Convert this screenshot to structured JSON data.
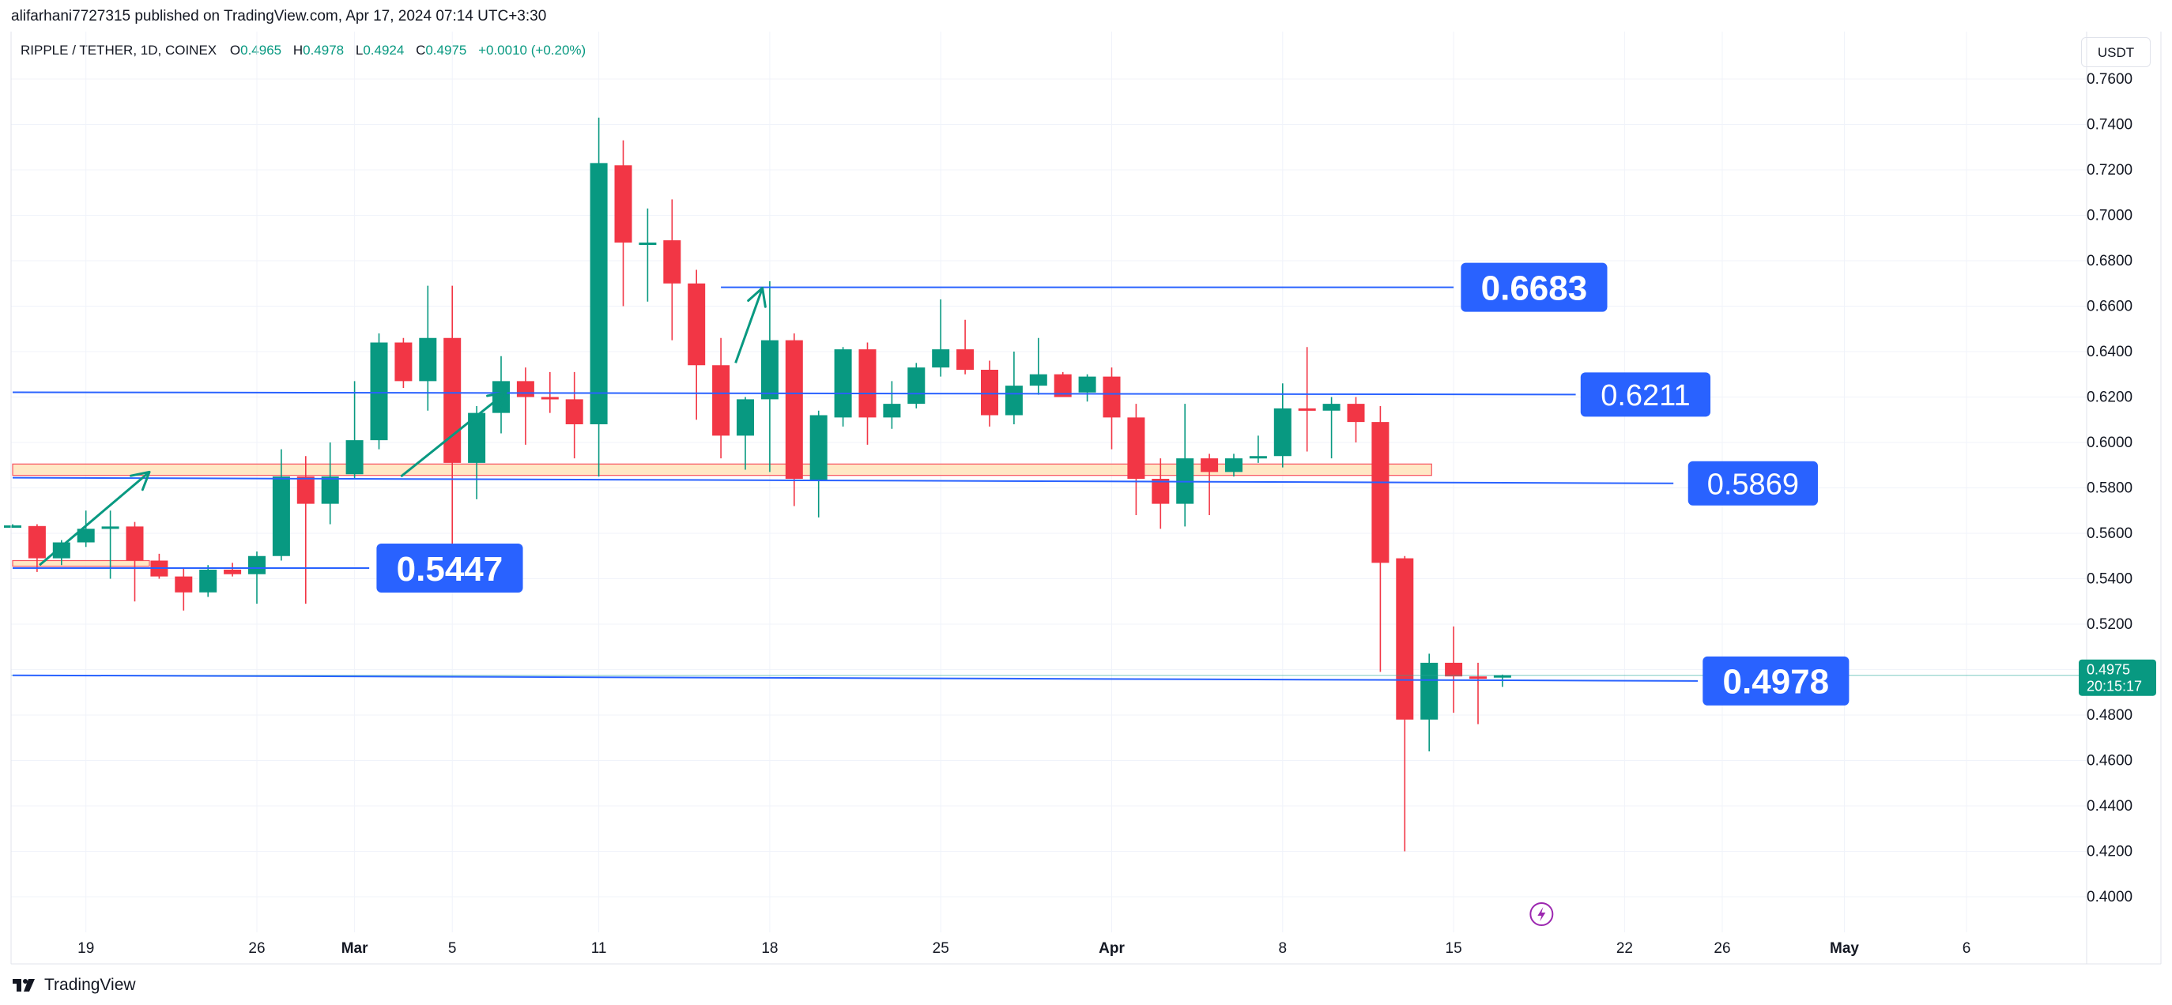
{
  "header": {
    "publisher_line": "alifarhani7727315 published on TradingView.com, Apr 17, 2024 07:14 UTC+3:30"
  },
  "legend": {
    "symbol": "RIPPLE / TETHER, 1D, COINEX",
    "open_label": "O",
    "open": "0.4965",
    "high_label": "H",
    "high": "0.4978",
    "low_label": "L",
    "low": "0.4924",
    "close_label": "C",
    "close": "0.4975",
    "change": "+0.0010 (+0.20%)"
  },
  "currency_button": "USDT",
  "footer": {
    "brand": "TradingView"
  },
  "colors": {
    "up": "#089981",
    "down": "#f23645",
    "line": "#2962ff",
    "zone_fill": "#ffe0b2",
    "zone_border": "#f7525f",
    "grid": "#f0f3fa",
    "text": "#131722",
    "price_line": "#26a69a"
  },
  "chart_data": {
    "type": "candlestick",
    "ylim": [
      0.38,
      0.77
    ],
    "y_ticks": [
      "0.7600",
      "0.7400",
      "0.7200",
      "0.7000",
      "0.6800",
      "0.6600",
      "0.6400",
      "0.6200",
      "0.6000",
      "0.5800",
      "0.5600",
      "0.5400",
      "0.5200",
      "0.5000",
      "0.4800",
      "0.4600",
      "0.4400",
      "0.4200",
      "0.4000"
    ],
    "x_ticks": [
      {
        "label": "19",
        "day": 3
      },
      {
        "label": "26",
        "day": 10
      },
      {
        "label": "Mar",
        "day": 14,
        "bold": true
      },
      {
        "label": "5",
        "day": 18
      },
      {
        "label": "11",
        "day": 24
      },
      {
        "label": "18",
        "day": 31
      },
      {
        "label": "25",
        "day": 38
      },
      {
        "label": "Apr",
        "day": 45,
        "bold": true
      },
      {
        "label": "8",
        "day": 52
      },
      {
        "label": "15",
        "day": 59
      },
      {
        "label": "22",
        "day": 66
      },
      {
        "label": "26",
        "day": 70
      },
      {
        "label": "May",
        "day": 75,
        "bold": true
      },
      {
        "label": "6",
        "day": 80
      }
    ],
    "candles": [
      {
        "date": "Feb 16",
        "o": 0.5632,
        "h": 0.564,
        "l": 0.5625,
        "c": 0.5635
      },
      {
        "date": "Feb 17",
        "o": 0.5632,
        "h": 0.564,
        "l": 0.543,
        "c": 0.549
      },
      {
        "date": "Feb 18",
        "o": 0.549,
        "h": 0.557,
        "l": 0.546,
        "c": 0.556
      },
      {
        "date": "Feb 19",
        "o": 0.556,
        "h": 0.57,
        "l": 0.554,
        "c": 0.562
      },
      {
        "date": "Feb 20",
        "o": 0.563,
        "h": 0.57,
        "l": 0.54,
        "c": 0.563
      },
      {
        "date": "Feb 21",
        "o": 0.563,
        "h": 0.565,
        "l": 0.53,
        "c": 0.548
      },
      {
        "date": "Feb 22",
        "o": 0.548,
        "h": 0.551,
        "l": 0.54,
        "c": 0.541
      },
      {
        "date": "Feb 23",
        "o": 0.541,
        "h": 0.545,
        "l": 0.526,
        "c": 0.534
      },
      {
        "date": "Feb 24",
        "o": 0.534,
        "h": 0.546,
        "l": 0.532,
        "c": 0.544
      },
      {
        "date": "Feb 25",
        "o": 0.544,
        "h": 0.547,
        "l": 0.541,
        "c": 0.542
      },
      {
        "date": "Feb 26",
        "o": 0.542,
        "h": 0.552,
        "l": 0.529,
        "c": 0.55
      },
      {
        "date": "Feb 27",
        "o": 0.55,
        "h": 0.597,
        "l": 0.548,
        "c": 0.585
      },
      {
        "date": "Feb 28",
        "o": 0.585,
        "h": 0.594,
        "l": 0.529,
        "c": 0.573
      },
      {
        "date": "Feb 29",
        "o": 0.573,
        "h": 0.6,
        "l": 0.564,
        "c": 0.585
      },
      {
        "date": "Mar 1",
        "o": 0.586,
        "h": 0.627,
        "l": 0.584,
        "c": 0.601
      },
      {
        "date": "Mar 2",
        "o": 0.601,
        "h": 0.648,
        "l": 0.597,
        "c": 0.644
      },
      {
        "date": "Mar 3",
        "o": 0.644,
        "h": 0.646,
        "l": 0.624,
        "c": 0.627
      },
      {
        "date": "Mar 4",
        "o": 0.627,
        "h": 0.669,
        "l": 0.614,
        "c": 0.646
      },
      {
        "date": "Mar 5",
        "o": 0.646,
        "h": 0.669,
        "l": 0.54,
        "c": 0.591
      },
      {
        "date": "Mar 6",
        "o": 0.591,
        "h": 0.616,
        "l": 0.575,
        "c": 0.613
      },
      {
        "date": "Mar 7",
        "o": 0.613,
        "h": 0.638,
        "l": 0.604,
        "c": 0.627
      },
      {
        "date": "Mar 8",
        "o": 0.627,
        "h": 0.633,
        "l": 0.599,
        "c": 0.62
      },
      {
        "date": "Mar 9",
        "o": 0.62,
        "h": 0.631,
        "l": 0.613,
        "c": 0.619
      },
      {
        "date": "Mar 10",
        "o": 0.619,
        "h": 0.631,
        "l": 0.593,
        "c": 0.608
      },
      {
        "date": "Mar 11",
        "o": 0.608,
        "h": 0.743,
        "l": 0.585,
        "c": 0.723
      },
      {
        "date": "Mar 12",
        "o": 0.722,
        "h": 0.733,
        "l": 0.66,
        "c": 0.688
      },
      {
        "date": "Mar 13",
        "o": 0.688,
        "h": 0.703,
        "l": 0.662,
        "c": 0.688
      },
      {
        "date": "Mar 14",
        "o": 0.689,
        "h": 0.707,
        "l": 0.645,
        "c": 0.67
      },
      {
        "date": "Mar 15",
        "o": 0.67,
        "h": 0.676,
        "l": 0.61,
        "c": 0.634
      },
      {
        "date": "Mar 16",
        "o": 0.634,
        "h": 0.646,
        "l": 0.593,
        "c": 0.603
      },
      {
        "date": "Mar 17",
        "o": 0.603,
        "h": 0.62,
        "l": 0.588,
        "c": 0.619
      },
      {
        "date": "Mar 18",
        "o": 0.619,
        "h": 0.671,
        "l": 0.587,
        "c": 0.645
      },
      {
        "date": "Mar 19",
        "o": 0.645,
        "h": 0.648,
        "l": 0.572,
        "c": 0.584
      },
      {
        "date": "Mar 20",
        "o": 0.583,
        "h": 0.614,
        "l": 0.567,
        "c": 0.612
      },
      {
        "date": "Mar 21",
        "o": 0.611,
        "h": 0.642,
        "l": 0.607,
        "c": 0.641
      },
      {
        "date": "Mar 22",
        "o": 0.641,
        "h": 0.644,
        "l": 0.599,
        "c": 0.611
      },
      {
        "date": "Mar 23",
        "o": 0.611,
        "h": 0.627,
        "l": 0.606,
        "c": 0.617
      },
      {
        "date": "Mar 24",
        "o": 0.617,
        "h": 0.635,
        "l": 0.615,
        "c": 0.633
      },
      {
        "date": "Mar 25",
        "o": 0.633,
        "h": 0.663,
        "l": 0.629,
        "c": 0.641
      },
      {
        "date": "Mar 26",
        "o": 0.641,
        "h": 0.654,
        "l": 0.63,
        "c": 0.632
      },
      {
        "date": "Mar 27",
        "o": 0.632,
        "h": 0.636,
        "l": 0.607,
        "c": 0.612
      },
      {
        "date": "Mar 28",
        "o": 0.612,
        "h": 0.64,
        "l": 0.608,
        "c": 0.625
      },
      {
        "date": "Mar 29",
        "o": 0.625,
        "h": 0.646,
        "l": 0.621,
        "c": 0.63
      },
      {
        "date": "Mar 30",
        "o": 0.63,
        "h": 0.631,
        "l": 0.62,
        "c": 0.62
      },
      {
        "date": "Mar 31",
        "o": 0.622,
        "h": 0.63,
        "l": 0.618,
        "c": 0.629
      },
      {
        "date": "Apr 1",
        "o": 0.629,
        "h": 0.633,
        "l": 0.597,
        "c": 0.611
      },
      {
        "date": "Apr 2",
        "o": 0.611,
        "h": 0.617,
        "l": 0.568,
        "c": 0.584
      },
      {
        "date": "Apr 3",
        "o": 0.584,
        "h": 0.593,
        "l": 0.562,
        "c": 0.573
      },
      {
        "date": "Apr 4",
        "o": 0.573,
        "h": 0.617,
        "l": 0.563,
        "c": 0.593
      },
      {
        "date": "Apr 5",
        "o": 0.593,
        "h": 0.595,
        "l": 0.568,
        "c": 0.587
      },
      {
        "date": "Apr 6",
        "o": 0.587,
        "h": 0.595,
        "l": 0.585,
        "c": 0.593
      },
      {
        "date": "Apr 7",
        "o": 0.593,
        "h": 0.603,
        "l": 0.591,
        "c": 0.594
      },
      {
        "date": "Apr 8",
        "o": 0.594,
        "h": 0.626,
        "l": 0.589,
        "c": 0.615
      },
      {
        "date": "Apr 9",
        "o": 0.615,
        "h": 0.642,
        "l": 0.596,
        "c": 0.614
      },
      {
        "date": "Apr 10",
        "o": 0.614,
        "h": 0.62,
        "l": 0.593,
        "c": 0.617
      },
      {
        "date": "Apr 11",
        "o": 0.617,
        "h": 0.62,
        "l": 0.6,
        "c": 0.609
      },
      {
        "date": "Apr 12",
        "o": 0.609,
        "h": 0.616,
        "l": 0.499,
        "c": 0.547
      },
      {
        "date": "Apr 13",
        "o": 0.549,
        "h": 0.55,
        "l": 0.42,
        "c": 0.478
      },
      {
        "date": "Apr 14",
        "o": 0.478,
        "h": 0.507,
        "l": 0.464,
        "c": 0.503
      },
      {
        "date": "Apr 15",
        "o": 0.503,
        "h": 0.519,
        "l": 0.481,
        "c": 0.497
      },
      {
        "date": "Apr 16",
        "o": 0.497,
        "h": 0.503,
        "l": 0.476,
        "c": 0.4965
      },
      {
        "date": "Apr 17",
        "o": 0.4965,
        "h": 0.4978,
        "l": 0.4924,
        "c": 0.4975
      }
    ],
    "levels": [
      {
        "label": "0.6683",
        "price_start": 0.6683,
        "price_end": 0.6683,
        "day_start": 29,
        "day_end": 59,
        "label_day": 59.3,
        "label_bold": true,
        "label_size": "large"
      },
      {
        "label": "0.6211",
        "price_start": 0.6221,
        "price_end": 0.6211,
        "day_start": 0,
        "day_end": 64,
        "label_day": 64.2,
        "label_bold": false,
        "label_size": "medium"
      },
      {
        "label": "0.5869",
        "price_start": 0.5845,
        "price_end": 0.582,
        "day_start": 0,
        "day_end": 68,
        "label_day": 68.6,
        "label_bold": false,
        "label_size": "medium"
      },
      {
        "label": "0.5447",
        "price_start": 0.5447,
        "price_end": 0.5447,
        "day_start": 0,
        "day_end": 14.6,
        "label_day": 14.9,
        "label_bold": true,
        "label_size": "large"
      },
      {
        "label": "0.4978",
        "price_start": 0.4975,
        "price_end": 0.495,
        "day_start": 0,
        "day_end": 69,
        "label_day": 69.2,
        "label_bold": true,
        "label_size": "large"
      }
    ],
    "zones": [
      {
        "price_top": 0.5905,
        "price_bottom": 0.5855,
        "day_start": 0,
        "day_end": 58.1
      },
      {
        "price_top": 0.548,
        "price_bottom": 0.5455,
        "day_start": 0,
        "day_end": 5.6
      }
    ],
    "arrows": [
      {
        "from": {
          "day": 1.1,
          "price": 0.546
        },
        "to": {
          "day": 5.6,
          "price": 0.587
        }
      },
      {
        "from": {
          "day": 15.9,
          "price": 0.585
        },
        "to": {
          "day": 20.2,
          "price": 0.622
        }
      },
      {
        "from": {
          "day": 29.6,
          "price": 0.635
        },
        "to": {
          "day": 30.7,
          "price": 0.668
        }
      }
    ],
    "last_price": {
      "value": "0.4975",
      "countdown": "20:15:17"
    },
    "event_marker": {
      "day": 62.6,
      "icon": "lightning-icon"
    }
  }
}
